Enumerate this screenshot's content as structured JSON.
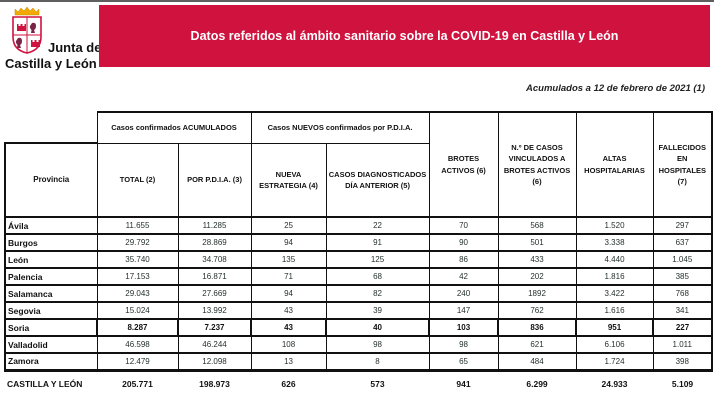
{
  "logo": {
    "line1": "Junta de",
    "line2": "Castilla y León"
  },
  "banner": {
    "text": "Datos referidos al ámbito sanitario sobre la COVID-19 en Castilla y León"
  },
  "subtitle": "Acumulados a 12 de febrero de 2021 (1)",
  "colors": {
    "banner_red": "#d0123e",
    "border_black": "#111111",
    "crown_gold": "#f2a900",
    "castle_red": "#d0123e",
    "lion_purple": "#7b2346"
  },
  "table": {
    "group_headers": [
      "Casos confirmados ACUMULADOS",
      "Casos NUEVOS confirmados por P.D.I.A."
    ],
    "col_headers": [
      "Provincia",
      "TOTAL (2)",
      "POR P.D.I.A. (3)",
      "NUEVA ESTRATEGIA (4)",
      "CASOS DIAGNOSTICADOS DÍA ANTERIOR (5)",
      "BROTES ACTIVOS (6)",
      "N.º DE CASOS VINCULADOS A BROTES ACTIVOS (6)",
      "ALTAS HOSPITALARIAS",
      "FALLECIDOS EN HOSPITALES (7)"
    ],
    "rows": [
      {
        "province": "Ávila",
        "values": [
          "11.655",
          "11.285",
          "25",
          "22",
          "70",
          "568",
          "1.520",
          "297"
        ],
        "highlight": false
      },
      {
        "province": "Burgos",
        "values": [
          "29.792",
          "28.869",
          "94",
          "91",
          "90",
          "501",
          "3.338",
          "637"
        ],
        "highlight": false
      },
      {
        "province": "León",
        "values": [
          "35.740",
          "34.708",
          "135",
          "125",
          "86",
          "433",
          "4.440",
          "1.045"
        ],
        "highlight": false
      },
      {
        "province": "Palencia",
        "values": [
          "17.153",
          "16.871",
          "71",
          "68",
          "42",
          "202",
          "1.816",
          "385"
        ],
        "highlight": false
      },
      {
        "province": "Salamanca",
        "values": [
          "29.043",
          "27.669",
          "94",
          "82",
          "240",
          "1892",
          "3.422",
          "768"
        ],
        "highlight": false
      },
      {
        "province": "Segovia",
        "values": [
          "15.024",
          "13.992",
          "43",
          "39",
          "147",
          "762",
          "1.616",
          "341"
        ],
        "highlight": false
      },
      {
        "province": "Soria",
        "values": [
          "8.287",
          "7.237",
          "43",
          "40",
          "103",
          "836",
          "951",
          "227"
        ],
        "highlight": true
      },
      {
        "province": "Valladolid",
        "values": [
          "46.598",
          "46.244",
          "108",
          "98",
          "98",
          "621",
          "6.106",
          "1.011"
        ],
        "highlight": false
      },
      {
        "province": "Zamora",
        "values": [
          "12.479",
          "12.098",
          "13",
          "8",
          "65",
          "484",
          "1.724",
          "398"
        ],
        "highlight": false
      }
    ],
    "total": {
      "province": "CASTILLA Y LEÓN",
      "values": [
        "205.771",
        "198.973",
        "626",
        "573",
        "941",
        "6.299",
        "24.933",
        "5.109"
      ]
    }
  }
}
